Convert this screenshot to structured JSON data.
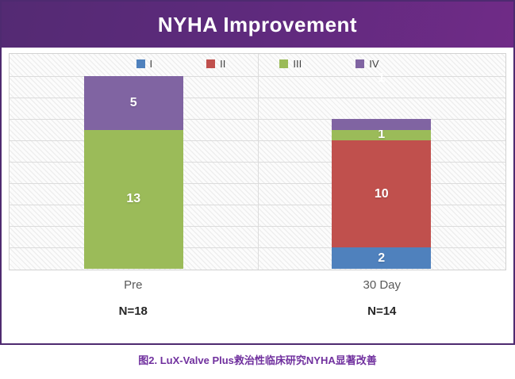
{
  "header": {
    "title": "NYHA Improvement"
  },
  "caption": {
    "text": "图2. LuX-Valve Plus救治性临床研究NYHA显著改善"
  },
  "colors": {
    "frame_dark_purple": "#4e2a70",
    "frame_light_purple": "#a98fc3",
    "header_gradient_start": "#542a73",
    "header_gradient_end": "#702b87",
    "caption_purple": "#70309e",
    "gridline": "#dcdcdc",
    "category_label": "#595959",
    "n_label": "#262626"
  },
  "chart_data": {
    "type": "bar",
    "stacked": true,
    "title": "NYHA Improvement",
    "categories": [
      "Pre",
      "30 Day"
    ],
    "category_sublabels": [
      "N=18",
      "N=14"
    ],
    "totals": [
      18,
      14
    ],
    "series": [
      {
        "name": "I",
        "color": "#4F81BD",
        "values": [
          0,
          2
        ],
        "show_labels": [
          false,
          true
        ]
      },
      {
        "name": "II",
        "color": "#C0504D",
        "values": [
          0,
          10
        ],
        "show_labels": [
          false,
          true
        ]
      },
      {
        "name": "III",
        "color": "#9BBB59",
        "values": [
          13,
          1
        ],
        "show_labels": [
          true,
          true
        ]
      },
      {
        "name": "IV",
        "color": "#8064A2",
        "values": [
          5,
          1
        ],
        "show_labels": [
          true,
          false
        ]
      }
    ],
    "floating_label": {
      "text": "1",
      "category_index": 1,
      "y_value": 17.7
    },
    "xlabel": "",
    "ylabel": "",
    "ylim": [
      0,
      20
    ],
    "gridline_step": 2,
    "grid": true,
    "legend_position": "top"
  }
}
